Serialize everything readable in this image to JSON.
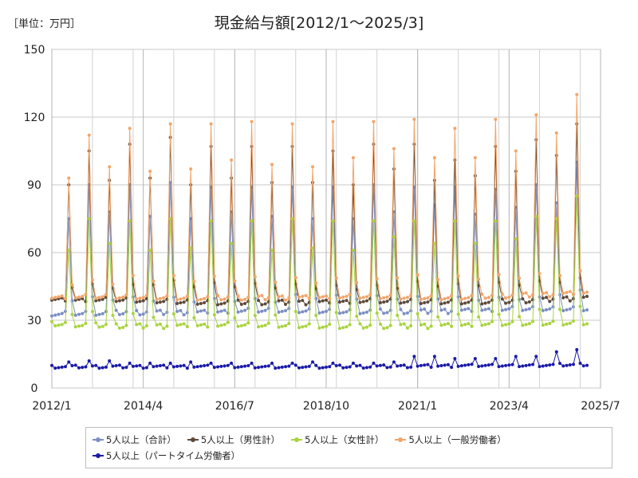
{
  "header": {
    "unit": "［単位：万円］",
    "title": "現金給与額[2012/1～2025/3]"
  },
  "chart_data": {
    "type": "line",
    "title": "現金給与額[2012/1～2025/3]",
    "unit_label": "［単位：万円］",
    "x_start": "2012-01",
    "x_end": "2025-07",
    "x_ticks": [
      "2012/1",
      "2014/4",
      "2016/7",
      "2018/10",
      "2021/1",
      "2023/4",
      "2025/7"
    ],
    "ylim": [
      0,
      150
    ],
    "y_ticks": [
      0,
      30,
      60,
      90,
      120,
      150
    ],
    "grid": "vertical-and-horizontal",
    "legend_position": "bottom",
    "peak_months": [
      "2012-06",
      "2012-12",
      "2013-06",
      "2013-12",
      "2014-06",
      "2014-12",
      "2015-06",
      "2015-12",
      "2016-06",
      "2016-12",
      "2017-06",
      "2017-12",
      "2018-06",
      "2018-12",
      "2019-06",
      "2019-12",
      "2020-06",
      "2020-12",
      "2021-06",
      "2021-12",
      "2022-06",
      "2022-12",
      "2023-06",
      "2023-12",
      "2024-06",
      "2024-12"
    ],
    "series": [
      {
        "name": "5人以上（合計）",
        "color": "#7b8fc4",
        "base": [
          33,
          33.5,
          33.5,
          34,
          34,
          34,
          34.5,
          35
        ],
        "peaks": [
          75,
          90,
          78,
          90,
          76,
          91,
          75,
          89,
          78,
          89,
          76,
          89,
          75,
          89,
          75,
          90,
          78,
          89,
          81,
          89,
          77,
          88,
          80,
          90,
          82,
          100
        ]
      },
      {
        "name": "5人以上（男性計）",
        "color": "#5e4a3a",
        "base": [
          39,
          38.5,
          38,
          38,
          38,
          38,
          38.5,
          40
        ],
        "peaks": [
          90,
          105,
          92,
          108,
          93,
          111,
          90,
          107,
          93,
          107,
          91,
          107,
          91,
          105,
          90,
          108,
          97,
          108,
          92,
          101,
          94,
          107,
          96,
          110,
          103,
          117
        ]
      },
      {
        "name": "5人以上（女性計）",
        "color": "#a8d43e",
        "base": [
          28.5,
          27.5,
          27.5,
          27.5,
          27.5,
          27.5,
          28,
          29
        ],
        "peaks": [
          61,
          75,
          64,
          74,
          61,
          75,
          62,
          74,
          64,
          74,
          61,
          75,
          62,
          74,
          61,
          74,
          67,
          74,
          64,
          74,
          64,
          74,
          66,
          76,
          75,
          85
        ]
      },
      {
        "name": "5人以上（一般労働者）",
        "color": "#f2a56a",
        "base": [
          40,
          40,
          40,
          40,
          40,
          40,
          41,
          42
        ],
        "peaks": [
          93,
          112,
          98,
          115,
          96,
          117,
          97,
          117,
          101,
          118,
          99,
          117,
          98,
          118,
          102,
          118,
          106,
          119,
          102,
          115,
          102,
          119,
          105,
          121,
          113,
          130
        ]
      },
      {
        "name": "5人以上（パートタイム労働者）",
        "color": "#1a1aa8",
        "base": [
          9.5,
          9.5,
          9.5,
          9.5,
          9.5,
          9.8,
          10,
          10.5
        ],
        "peaks": [
          11.5,
          12,
          12,
          11,
          11,
          11,
          11.5,
          11,
          11,
          11,
          11,
          11,
          11.5,
          11,
          11,
          11,
          11.5,
          14,
          14,
          13,
          13,
          13,
          14,
          14,
          16,
          17
        ]
      }
    ]
  }
}
